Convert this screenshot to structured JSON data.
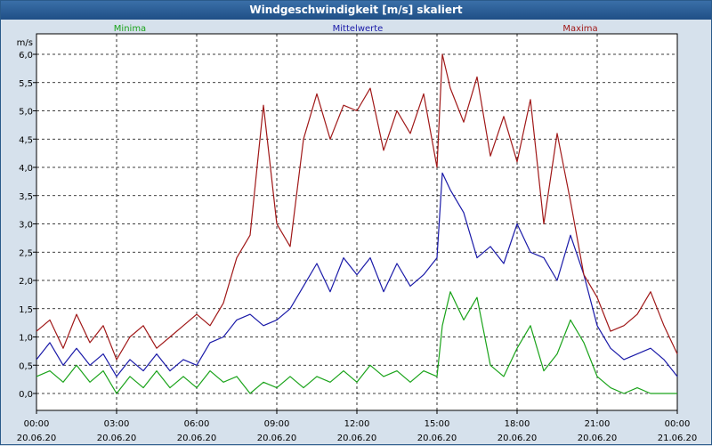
{
  "window": {
    "title": "Windgeschwindigkeit [m/s] skaliert"
  },
  "colors": {
    "minima": "#1aa31a",
    "mittelwerte": "#1a1aa8",
    "maxima": "#a01818",
    "grid": "#000000",
    "plot_bg": "#ffffff"
  },
  "chart_data": {
    "type": "line",
    "ylabel": "m/s",
    "ylim": [
      0,
      6
    ],
    "y_ticks": [
      "0,0",
      "0,5",
      "1,0",
      "1,5",
      "2,0",
      "2,5",
      "3,0",
      "3,5",
      "4,0",
      "4,5",
      "5,0",
      "5,5",
      "6,0"
    ],
    "x_ticks": [
      {
        "time": "00:00",
        "date": "20.06.20"
      },
      {
        "time": "03:00",
        "date": "20.06.20"
      },
      {
        "time": "06:00",
        "date": "20.06.20"
      },
      {
        "time": "09:00",
        "date": "20.06.20"
      },
      {
        "time": "12:00",
        "date": "20.06.20"
      },
      {
        "time": "15:00",
        "date": "20.06.20"
      },
      {
        "time": "18:00",
        "date": "20.06.20"
      },
      {
        "time": "21:00",
        "date": "20.06.20"
      },
      {
        "time": "00:00",
        "date": "21.06.20"
      }
    ],
    "xlim_hours": [
      0,
      24
    ],
    "grid": true,
    "series": [
      {
        "name": "Minima",
        "legend_position": "left",
        "x": [
          0,
          0.5,
          1,
          1.5,
          2,
          2.5,
          3,
          3.5,
          4,
          4.5,
          5,
          5.5,
          6,
          6.5,
          7,
          7.5,
          8,
          8.5,
          9,
          9.5,
          10,
          10.5,
          11,
          11.5,
          12,
          12.5,
          13,
          13.5,
          14,
          14.5,
          15,
          15.2,
          15.5,
          16,
          16.5,
          17,
          17.5,
          18,
          18.5,
          19,
          19.5,
          20,
          20.5,
          21,
          21.5,
          22,
          22.5,
          23,
          23.5,
          24
        ],
        "values": [
          0.3,
          0.4,
          0.2,
          0.5,
          0.2,
          0.4,
          0.0,
          0.3,
          0.1,
          0.4,
          0.1,
          0.3,
          0.1,
          0.4,
          0.2,
          0.3,
          0.0,
          0.2,
          0.1,
          0.3,
          0.1,
          0.3,
          0.2,
          0.4,
          0.2,
          0.5,
          0.3,
          0.4,
          0.2,
          0.4,
          0.3,
          1.2,
          1.8,
          1.3,
          1.7,
          0.5,
          0.3,
          0.8,
          1.2,
          0.4,
          0.7,
          1.3,
          0.9,
          0.3,
          0.1,
          0.0,
          0.1,
          0.0,
          0.0,
          0.0
        ]
      },
      {
        "name": "Mittelwerte",
        "legend_position": "center",
        "x": [
          0,
          0.5,
          1,
          1.5,
          2,
          2.5,
          3,
          3.5,
          4,
          4.5,
          5,
          5.5,
          6,
          6.5,
          7,
          7.5,
          8,
          8.5,
          9,
          9.5,
          10,
          10.5,
          11,
          11.5,
          12,
          12.5,
          13,
          13.5,
          14,
          14.5,
          15,
          15.2,
          15.5,
          16,
          16.5,
          17,
          17.5,
          18,
          18.5,
          19,
          19.5,
          20,
          20.5,
          21,
          21.5,
          22,
          22.5,
          23,
          23.5,
          24
        ],
        "values": [
          0.6,
          0.9,
          0.5,
          0.8,
          0.5,
          0.7,
          0.3,
          0.6,
          0.4,
          0.7,
          0.4,
          0.6,
          0.5,
          0.9,
          1.0,
          1.3,
          1.4,
          1.2,
          1.3,
          1.5,
          1.9,
          2.3,
          1.8,
          2.4,
          2.1,
          2.4,
          1.8,
          2.3,
          1.9,
          2.1,
          2.4,
          3.9,
          3.6,
          3.2,
          2.4,
          2.6,
          2.3,
          3.0,
          2.5,
          2.4,
          2.0,
          2.8,
          2.1,
          1.2,
          0.8,
          0.6,
          0.7,
          0.8,
          0.6,
          0.3
        ]
      },
      {
        "name": "Maxima",
        "legend_position": "right",
        "x": [
          0,
          0.5,
          1,
          1.5,
          2,
          2.5,
          3,
          3.5,
          4,
          4.5,
          5,
          5.5,
          6,
          6.5,
          7,
          7.5,
          8,
          8.5,
          9,
          9.5,
          10,
          10.5,
          11,
          11.5,
          12,
          12.5,
          13,
          13.5,
          14,
          14.5,
          15,
          15.2,
          15.5,
          16,
          16.5,
          17,
          17.5,
          18,
          18.5,
          19,
          19.5,
          20,
          20.5,
          21,
          21.5,
          22,
          22.5,
          23,
          23.5,
          24
        ],
        "values": [
          1.1,
          1.3,
          0.8,
          1.4,
          0.9,
          1.2,
          0.6,
          1.0,
          1.2,
          0.8,
          1.0,
          1.2,
          1.4,
          1.2,
          1.6,
          2.4,
          2.8,
          5.1,
          3.0,
          2.6,
          4.5,
          5.3,
          4.5,
          5.1,
          5.0,
          5.4,
          4.3,
          5.0,
          4.6,
          5.3,
          4.0,
          6.0,
          5.4,
          4.8,
          5.6,
          4.2,
          4.9,
          4.1,
          5.2,
          3.0,
          4.6,
          3.4,
          2.1,
          1.7,
          1.1,
          1.2,
          1.4,
          1.8,
          1.2,
          0.7
        ]
      }
    ]
  }
}
